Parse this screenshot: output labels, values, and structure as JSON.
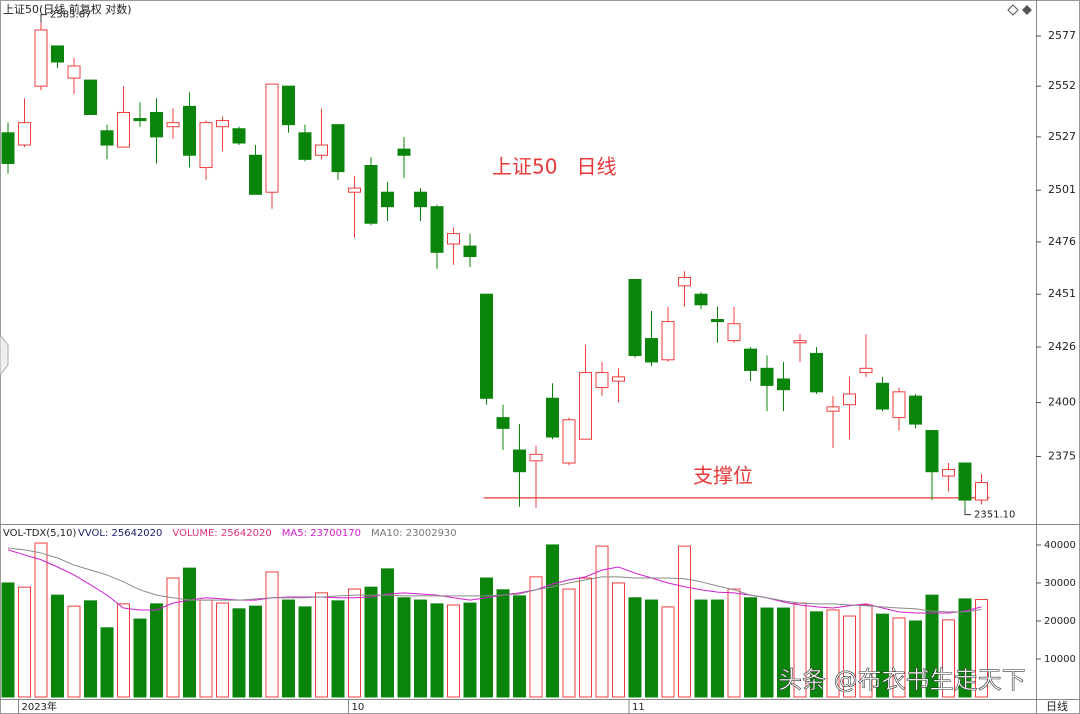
{
  "chart_data": [
    {
      "type": "candlestick",
      "title": "上证50(日线 前复权 对数)",
      "log_scale": true,
      "ylim": [
        2345,
        2590
      ],
      "yticks": [
        2577,
        2552,
        2527,
        2501,
        2476,
        2451,
        2426,
        2400,
        2375
      ],
      "up_color": "#f03c3c",
      "down_color": "#0b840b",
      "open": [
        2529,
        2523,
        2552,
        2572,
        2556,
        2555,
        2530,
        2522,
        2536,
        2539,
        2532,
        2542,
        2512,
        2532,
        2531,
        2518,
        2500,
        2552,
        2529,
        2518,
        2533,
        2500,
        2513,
        2500,
        2521,
        2500,
        2493,
        2475,
        2474,
        2451,
        2393,
        2378,
        2373,
        2402,
        2372,
        2383,
        2407,
        2410,
        2458,
        2430,
        2420,
        2455,
        2451,
        2439,
        2429,
        2425,
        2416,
        2411,
        2428,
        2423,
        2396,
        2399,
        2414,
        2409,
        2393,
        2403,
        2387,
        2366,
        2372,
        2355
      ],
      "high": [
        2534,
        2546,
        2583.67,
        2572,
        2566,
        2555,
        2533,
        2552,
        2544,
        2546,
        2541,
        2549,
        2535,
        2537,
        2532,
        2523,
        2553,
        2552,
        2533,
        2541,
        2533,
        2508,
        2517,
        2505,
        2527,
        2502,
        2494,
        2483,
        2480,
        2451,
        2399,
        2390,
        2380,
        2409,
        2393,
        2427,
        2419,
        2416,
        2458,
        2443,
        2445,
        2462,
        2452,
        2445,
        2445,
        2426,
        2422,
        2419,
        2432,
        2426,
        2403,
        2412,
        2432,
        2412,
        2407,
        2404,
        2387,
        2372,
        2372,
        2367
      ],
      "low": [
        2509,
        2522,
        2550,
        2561,
        2548,
        2538,
        2516,
        2522,
        2532,
        2514,
        2526,
        2512,
        2506,
        2520,
        2523,
        2499,
        2492,
        2529,
        2515,
        2516,
        2506,
        2478,
        2484,
        2486,
        2507,
        2486,
        2463,
        2465,
        2464,
        2399,
        2378,
        2352,
        2351.5,
        2383,
        2371,
        2383,
        2403,
        2400,
        2421,
        2417,
        2419,
        2445,
        2444,
        2428,
        2428,
        2410,
        2396,
        2396,
        2419,
        2404,
        2379,
        2383,
        2412,
        2396,
        2387,
        2388,
        2355,
        2359,
        2351.1,
        2353
      ],
      "close": [
        2514,
        2534,
        2580,
        2564,
        2562,
        2538,
        2523,
        2539,
        2535,
        2527,
        2534,
        2518,
        2534,
        2535,
        2524,
        2499,
        2553,
        2533,
        2516,
        2523,
        2510,
        2502,
        2485,
        2493,
        2518,
        2493,
        2471,
        2480,
        2469,
        2402,
        2388,
        2368,
        2376,
        2384,
        2392,
        2414,
        2414,
        2412,
        2422,
        2419,
        2438,
        2459,
        2446,
        2438,
        2437,
        2415,
        2408,
        2406,
        2429,
        2405,
        2398,
        2404,
        2416,
        2397,
        2405,
        2390,
        2368,
        2369,
        2355,
        2363
      ],
      "high_label": "2583.67",
      "low_label": "2351.10",
      "annotation": "上证50   日线",
      "support_label": "支撑位",
      "support_level": 2356
    },
    {
      "type": "volume",
      "title": "VOL-TDX(5,10)",
      "legend": [
        {
          "label": "VVOL: 25642020",
          "color": "#1a1a6e"
        },
        {
          "label": "VOLUME: 25642020",
          "color": "#e0307a"
        },
        {
          "label": "MA5: 23700170",
          "color": "#d21ed2"
        },
        {
          "label": "MA10: 23002930",
          "color": "#777777"
        }
      ],
      "ylim": [
        0,
        41300
      ],
      "yticks": [
        10000,
        20000,
        30000,
        40000
      ],
      "categories": [
        null,
        "2023年",
        null,
        null,
        null,
        null,
        null,
        null,
        null,
        null,
        null,
        null,
        null,
        null,
        null,
        null,
        null,
        null,
        null,
        null,
        null,
        "10",
        null,
        null,
        null,
        null,
        null,
        null,
        null,
        null,
        null,
        null,
        null,
        null,
        null,
        null,
        null,
        null,
        "11",
        null,
        null,
        null,
        null,
        null,
        null,
        null,
        null,
        null,
        null,
        null,
        null,
        null,
        null,
        null,
        null,
        null,
        null,
        null,
        null,
        null
      ],
      "values": [
        30000,
        28900,
        40500,
        26800,
        23900,
        25300,
        18200,
        24500,
        20500,
        24500,
        31300,
        33900,
        25500,
        24700,
        23200,
        23900,
        32900,
        25500,
        23700,
        27400,
        25300,
        28400,
        28900,
        33700,
        26100,
        25500,
        24500,
        24200,
        24700,
        31300,
        28200,
        26600,
        31600,
        40000,
        28400,
        31300,
        39700,
        30000,
        26100,
        25500,
        23700,
        39700,
        25500,
        25500,
        28400,
        26100,
        23400,
        23400,
        24700,
        22400,
        22900,
        21300,
        24200,
        21800,
        20800,
        20000,
        26800,
        20300,
        25800,
        25642
      ],
      "ma5": {
        "color": "#d21ed2",
        "values": [
          38700,
          37400,
          36100,
          34200,
          32100,
          29500,
          26800,
          23400,
          22900,
          22900,
          24700,
          25500,
          26100,
          25800,
          25500,
          25500,
          26100,
          26300,
          26300,
          26300,
          26100,
          26100,
          26300,
          27100,
          27400,
          27100,
          26800,
          26100,
          25500,
          26100,
          26800,
          27400,
          28200,
          29700,
          30800,
          31600,
          33400,
          34200,
          32600,
          31300,
          30000,
          29000,
          28200,
          27600,
          27400,
          26800,
          26100,
          25000,
          24200,
          23700,
          23400,
          24000,
          24500,
          23400,
          22400,
          22100,
          22100,
          22100,
          22600,
          23700.17
        ]
      },
      "ma10": {
        "color": "#8a8a8a",
        "values": [
          39200,
          38700,
          37900,
          36600,
          34700,
          33400,
          32100,
          30300,
          28200,
          26800,
          26100,
          25500,
          25500,
          25500,
          25500,
          25800,
          26100,
          26100,
          26100,
          26300,
          26600,
          26800,
          26800,
          26800,
          26600,
          26600,
          26600,
          26600,
          26600,
          26600,
          26800,
          27100,
          28200,
          29000,
          30000,
          30800,
          31600,
          31600,
          31300,
          31300,
          31300,
          31100,
          30300,
          29200,
          28200,
          26800,
          26100,
          25300,
          24700,
          24500,
          24500,
          24200,
          24000,
          23700,
          23400,
          23200,
          22600,
          22400,
          22400,
          23002.93
        ]
      },
      "period_label": "日线"
    }
  ],
  "watermark": "头条 @布衣书生走天下"
}
